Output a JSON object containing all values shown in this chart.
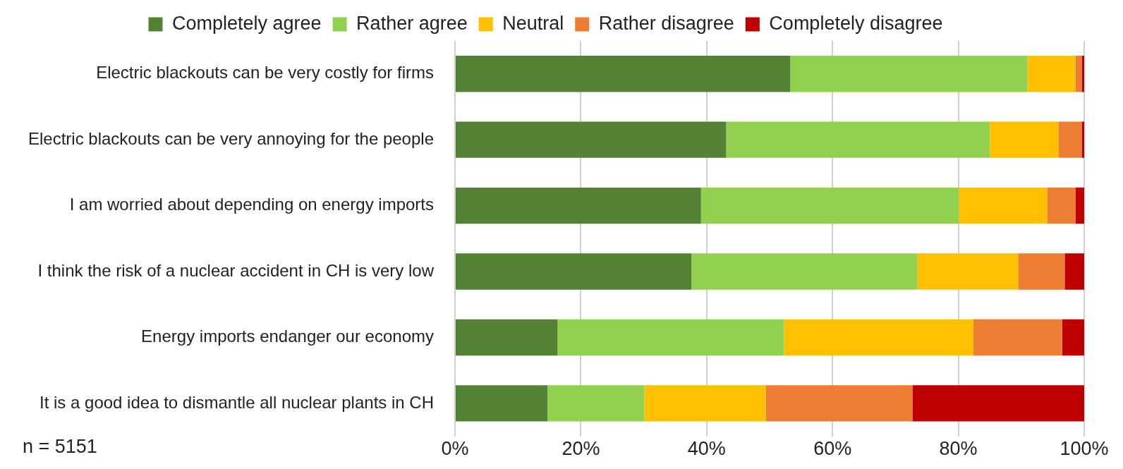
{
  "chart_data": {
    "type": "bar",
    "orientation": "horizontal",
    "stacked": true,
    "categories": [
      "Electric blackouts can be very costly for firms",
      "Electric blackouts can be very annoying for the people",
      "I am worried about depending on energy imports",
      "I think the risk of a nuclear accident in CH is very low",
      "Energy imports endanger our economy",
      "It is a good idea to dismantle all nuclear plants in CH"
    ],
    "series": [
      {
        "name": "Completely agree",
        "color": "#548235",
        "values": [
          53.3,
          43.1,
          39.1,
          37.6,
          16.3,
          14.7
        ]
      },
      {
        "name": "Rather agree",
        "color": "#92d050",
        "values": [
          37.7,
          41.9,
          41.0,
          35.9,
          36.0,
          15.4
        ]
      },
      {
        "name": "Neutral",
        "color": "#ffc000",
        "values": [
          7.6,
          10.9,
          14.0,
          16.0,
          30.1,
          19.3
        ]
      },
      {
        "name": "Rather disagree",
        "color": "#ed7d31",
        "values": [
          1.0,
          3.7,
          4.5,
          7.4,
          14.1,
          23.3
        ]
      },
      {
        "name": "Completely disagree",
        "color": "#c00000",
        "values": [
          0.4,
          0.4,
          1.4,
          3.1,
          3.5,
          27.3
        ]
      }
    ],
    "xlim": [
      0,
      100
    ],
    "xticks": [
      {
        "value": 0,
        "label": "0%"
      },
      {
        "value": 20,
        "label": "20%"
      },
      {
        "value": 40,
        "label": "40%"
      },
      {
        "value": 60,
        "label": "60%"
      },
      {
        "value": 80,
        "label": "80%"
      },
      {
        "value": 100,
        "label": "100%"
      }
    ],
    "grid": "x",
    "legend": "top",
    "annotations": [
      "n = 5151"
    ]
  }
}
